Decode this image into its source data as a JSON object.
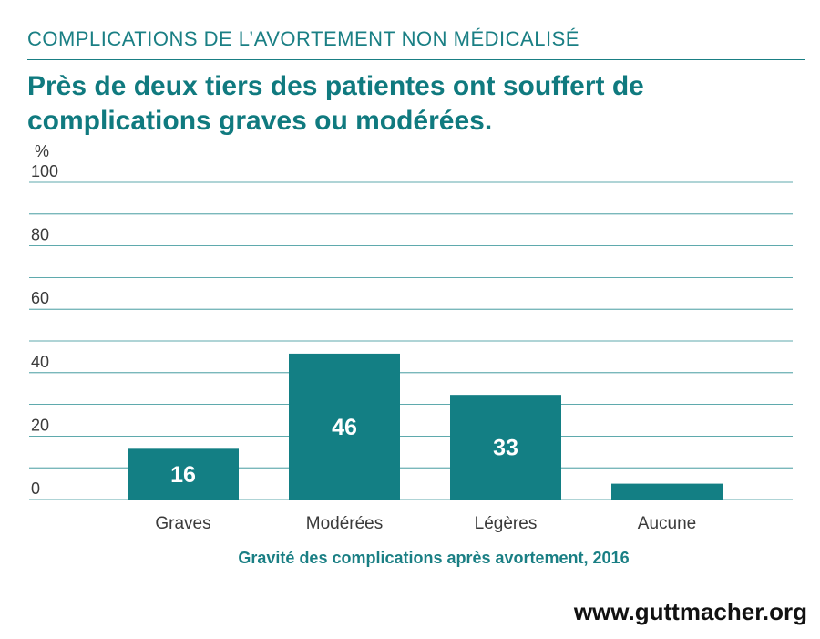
{
  "header": {
    "kicker": "COMPLICATIONS DE L’AVORTEMENT NON MÉDICALISÉ",
    "headline": "Près de deux tiers des patientes ont souffert de complications graves ou modérées."
  },
  "footer": {
    "website": "www.guttmacher.org"
  },
  "colors": {
    "bar": "#137f84",
    "grid": "#2a8d92",
    "text": "#3a3a3a",
    "accent": "#1a7f84"
  },
  "chart_data": {
    "type": "bar",
    "title": "",
    "xlabel": "Gravité des complications après avortement, 2016",
    "ylabel": "%",
    "categories": [
      "Graves",
      "Modérées",
      "Légères",
      "Aucune"
    ],
    "values": [
      16,
      46,
      33,
      5
    ],
    "value_labels": [
      "16",
      "46",
      "33",
      ""
    ],
    "yticks": [
      0,
      20,
      40,
      60,
      80,
      100
    ],
    "ylim": [
      0,
      100
    ],
    "grid": true,
    "legend": "none"
  }
}
